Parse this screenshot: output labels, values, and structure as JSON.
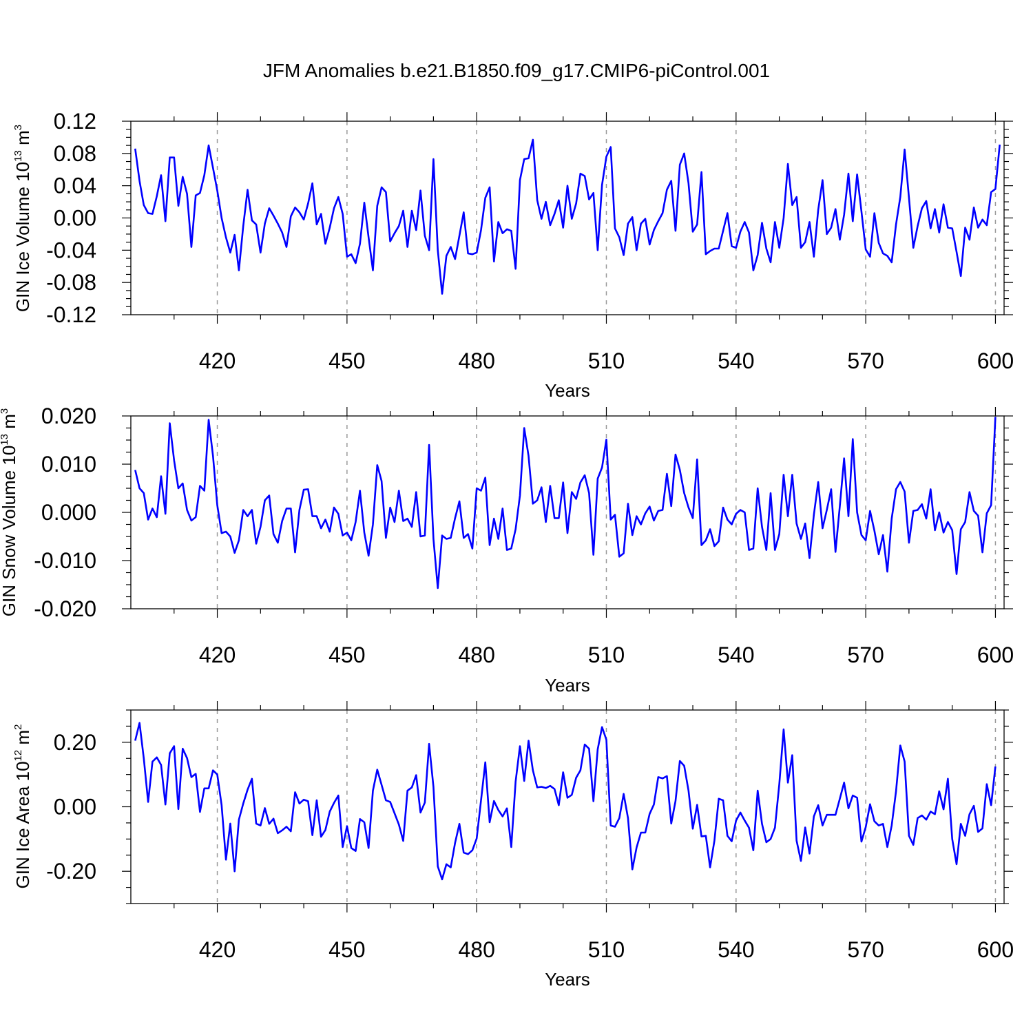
{
  "title": "JFM Anomalies b.e21.B1850.f09_g17.CMIP6-piControl.001",
  "chart_data": [
    {
      "type": "line",
      "ylabel": {
        "prefix": "GIN Ice Volume 10",
        "exp": "13",
        "unit": " m",
        "unit_exp": "3"
      },
      "xlabel": "Years",
      "xlim": [
        400,
        602
      ],
      "ylim": [
        -0.12,
        0.12
      ],
      "xticks": [
        420,
        450,
        480,
        510,
        540,
        570,
        600
      ],
      "xtick_labels": [
        "420",
        "450",
        "480",
        "510",
        "540",
        "570",
        "600"
      ],
      "yticks": [
        -0.12,
        -0.08,
        -0.04,
        0.0,
        0.04,
        0.08,
        0.12
      ],
      "ytick_labels": [
        "-0.12",
        "-0.08",
        "-0.04",
        "0.00",
        "0.04",
        "0.08",
        "0.12"
      ],
      "grid": "vertical dashed at major x ticks",
      "series": [
        {
          "color": "#0000ff",
          "x_start": 401,
          "values": [
            0.086,
            0.046,
            0.016,
            0.006,
            0.005,
            0.027,
            0.053,
            -0.004,
            0.075,
            0.075,
            0.015,
            0.051,
            0.03,
            -0.036,
            0.028,
            0.031,
            0.053,
            0.09,
            0.062,
            0.034,
            0.0,
            -0.024,
            -0.043,
            -0.021,
            -0.065,
            -0.01,
            0.035,
            -0.003,
            -0.008,
            -0.043,
            -0.007,
            0.012,
            0.003,
            -0.007,
            -0.018,
            -0.036,
            0.002,
            0.013,
            0.007,
            -0.002,
            0.018,
            0.043,
            -0.008,
            0.005,
            -0.032,
            -0.012,
            0.012,
            0.026,
            0.005,
            -0.048,
            -0.045,
            -0.056,
            -0.032,
            0.019,
            -0.024,
            -0.065,
            0.015,
            0.038,
            0.032,
            -0.029,
            -0.019,
            -0.01,
            0.009,
            -0.036,
            0.009,
            -0.015,
            0.034,
            -0.022,
            -0.04,
            0.073,
            -0.04,
            -0.094,
            -0.047,
            -0.036,
            -0.051,
            -0.022,
            0.007,
            -0.044,
            -0.045,
            -0.043,
            -0.015,
            0.025,
            0.038,
            -0.054,
            -0.005,
            -0.019,
            -0.014,
            -0.016,
            -0.063,
            0.047,
            0.073,
            0.074,
            0.097,
            0.022,
            -0.001,
            0.02,
            -0.009,
            0.005,
            0.022,
            -0.012,
            0.04,
            -0.001,
            0.018,
            0.055,
            0.052,
            0.023,
            0.031,
            -0.04,
            0.041,
            0.076,
            0.088,
            -0.013,
            -0.024,
            -0.046,
            -0.007,
            0.001,
            -0.04,
            -0.007,
            -0.001,
            -0.033,
            -0.015,
            -0.004,
            0.006,
            0.035,
            0.046,
            -0.016,
            0.066,
            0.08,
            0.043,
            -0.017,
            -0.008,
            0.057,
            -0.045,
            -0.041,
            -0.038,
            -0.038,
            -0.016,
            0.006,
            -0.035,
            -0.037,
            -0.017,
            -0.005,
            -0.018,
            -0.065,
            -0.046,
            -0.006,
            -0.038,
            -0.055,
            -0.005,
            -0.037,
            0.0,
            0.067,
            0.016,
            0.026,
            -0.037,
            -0.03,
            -0.005,
            -0.048,
            0.01,
            0.047,
            -0.02,
            -0.012,
            0.011,
            -0.027,
            0.004,
            0.055,
            -0.004,
            0.054,
            0.008,
            -0.039,
            -0.048,
            0.006,
            -0.031,
            -0.044,
            -0.047,
            -0.055,
            -0.008,
            0.026,
            0.085,
            0.025,
            -0.037,
            -0.01,
            0.012,
            0.021,
            -0.013,
            0.011,
            -0.018,
            0.017,
            -0.012,
            -0.013,
            -0.042,
            -0.072,
            -0.012,
            -0.027,
            0.013,
            -0.012,
            -0.002,
            -0.009,
            0.032,
            0.036,
            0.091
          ]
        }
      ]
    },
    {
      "type": "line",
      "ylabel": {
        "prefix": "GIN Snow Volume 10",
        "exp": "13",
        "unit": " m",
        "unit_exp": "3"
      },
      "xlabel": "Years",
      "xlim": [
        400,
        602
      ],
      "ylim": [
        -0.02,
        0.02
      ],
      "xticks": [
        420,
        450,
        480,
        510,
        540,
        570,
        600
      ],
      "xtick_labels": [
        "420",
        "450",
        "480",
        "510",
        "540",
        "570",
        "600"
      ],
      "yticks": [
        -0.02,
        -0.01,
        0.0,
        0.01,
        0.02
      ],
      "ytick_labels": [
        "-0.020",
        "-0.010",
        "0.000",
        "0.010",
        "0.020"
      ],
      "grid": "vertical dashed at major x ticks",
      "series": [
        {
          "color": "#0000ff",
          "x_start": 401,
          "values": [
            0.0088,
            0.005,
            0.004,
            -0.0015,
            0.0008,
            -0.001,
            0.0075,
            -0.0003,
            0.0185,
            0.0108,
            0.005,
            0.006,
            0.0005,
            -0.0017,
            -0.001,
            0.0055,
            0.0045,
            0.0192,
            0.0117,
            0.0015,
            -0.0043,
            -0.004,
            -0.005,
            -0.0084,
            -0.0058,
            0.0005,
            -0.0008,
            0.0005,
            -0.0065,
            -0.003,
            0.0025,
            0.0035,
            -0.0045,
            -0.0063,
            -0.0018,
            0.0008,
            0.0008,
            -0.0083,
            0.0005,
            0.0047,
            0.0048,
            -0.0008,
            -0.0008,
            -0.0033,
            -0.0015,
            -0.004,
            0.001,
            -0.0003,
            -0.0048,
            -0.0042,
            -0.0058,
            -0.002,
            0.0045,
            -0.0042,
            -0.009,
            -0.0025,
            0.0098,
            0.0065,
            -0.0053,
            0.001,
            -0.002,
            0.0045,
            -0.0018,
            -0.0013,
            -0.003,
            0.0042,
            -0.005,
            -0.0048,
            0.014,
            -0.0055,
            -0.0157,
            -0.0048,
            -0.0055,
            -0.0053,
            -0.0012,
            0.0023,
            -0.0053,
            -0.0045,
            -0.0075,
            0.005,
            0.0045,
            0.0072,
            -0.0068,
            -0.0013,
            -0.0055,
            0.0008,
            -0.0078,
            -0.0075,
            -0.0035,
            0.0035,
            0.0175,
            0.0117,
            0.0018,
            0.0025,
            0.0052,
            -0.002,
            0.0055,
            -0.0012,
            -0.0012,
            0.0062,
            -0.0043,
            0.0042,
            0.0028,
            0.0062,
            0.0077,
            0.004,
            -0.0088,
            0.007,
            0.0093,
            0.0151,
            -0.0015,
            -0.0005,
            -0.0092,
            -0.0085,
            0.0018,
            -0.0047,
            -0.0008,
            -0.0025,
            -0.0002,
            0.0012,
            -0.0017,
            0.0003,
            0.0005,
            0.008,
            0.0013,
            0.012,
            0.0088,
            0.004,
            0.001,
            -0.0012,
            0.011,
            -0.0068,
            -0.0058,
            -0.0035,
            -0.007,
            -0.006,
            0.001,
            -0.0015,
            -0.0025,
            -0.0003,
            0.0005,
            0.0,
            -0.0078,
            -0.0075,
            0.005,
            -0.003,
            -0.0078,
            0.004,
            -0.0078,
            -0.0045,
            0.0078,
            -0.0008,
            0.0078,
            -0.0023,
            -0.0055,
            -0.0023,
            -0.0095,
            -0.0005,
            0.0063,
            -0.0033,
            0.0005,
            0.0048,
            -0.0082,
            0.0013,
            0.0112,
            -0.0008,
            0.0152,
            0.0,
            -0.0047,
            -0.0058,
            0.0003,
            -0.0038,
            -0.0087,
            -0.0047,
            -0.0123,
            -0.0013,
            0.0048,
            0.0063,
            0.0043,
            -0.0063,
            0.0003,
            0.0005,
            0.0017,
            -0.0013,
            0.0048,
            -0.0037,
            0.0,
            -0.0042,
            -0.002,
            -0.0037,
            -0.0128,
            -0.0035,
            -0.002,
            0.0042,
            0.0003,
            -0.0007,
            -0.0083,
            -0.0002,
            0.0015,
            0.0198
          ]
        }
      ]
    },
    {
      "type": "line",
      "ylabel": {
        "prefix": "GIN Ice Area 10",
        "exp": "12",
        "unit": " m",
        "unit_exp": "2"
      },
      "xlabel": "Years",
      "xlim": [
        400,
        602
      ],
      "ylim": [
        -0.3,
        0.3
      ],
      "xticks": [
        420,
        450,
        480,
        510,
        540,
        570,
        600
      ],
      "xtick_labels": [
        "420",
        "450",
        "480",
        "510",
        "540",
        "570",
        "600"
      ],
      "yticks": [
        -0.2,
        0.0,
        0.2
      ],
      "ytick_labels": [
        "-0.20",
        "0.00",
        "0.20"
      ],
      "grid": "vertical dashed at major x ticks",
      "series": [
        {
          "color": "#0000ff",
          "x_start": 401,
          "values": [
            0.205,
            0.26,
            0.15,
            0.015,
            0.14,
            0.153,
            0.13,
            0.007,
            0.166,
            0.188,
            -0.007,
            0.18,
            0.151,
            0.092,
            0.102,
            -0.016,
            0.057,
            0.057,
            0.113,
            0.1,
            0.005,
            -0.164,
            -0.052,
            -0.2,
            -0.04,
            0.01,
            0.053,
            0.087,
            -0.052,
            -0.058,
            -0.004,
            -0.053,
            -0.037,
            -0.082,
            -0.073,
            -0.062,
            -0.076,
            0.045,
            0.01,
            0.022,
            0.017,
            -0.088,
            0.02,
            -0.093,
            -0.072,
            -0.015,
            0.012,
            0.035,
            -0.125,
            -0.06,
            -0.128,
            -0.137,
            -0.038,
            -0.048,
            -0.128,
            0.05,
            0.115,
            0.068,
            0.02,
            0.015,
            -0.02,
            -0.055,
            -0.106,
            0.05,
            0.06,
            0.098,
            -0.018,
            0.013,
            0.195,
            0.062,
            -0.185,
            -0.225,
            -0.178,
            -0.188,
            -0.112,
            -0.053,
            -0.142,
            -0.147,
            -0.135,
            -0.098,
            0.02,
            0.138,
            -0.048,
            0.018,
            -0.01,
            -0.03,
            -0.005,
            -0.125,
            0.078,
            0.188,
            0.08,
            0.205,
            0.113,
            0.06,
            0.062,
            0.058,
            0.065,
            0.055,
            0.005,
            0.107,
            0.028,
            0.037,
            0.09,
            0.113,
            0.193,
            0.18,
            0.017,
            0.178,
            0.247,
            0.208,
            -0.058,
            -0.062,
            -0.035,
            0.04,
            -0.035,
            -0.194,
            -0.126,
            -0.08,
            -0.08,
            -0.022,
            0.007,
            0.092,
            0.088,
            0.095,
            -0.052,
            0.018,
            0.142,
            0.127,
            0.05,
            -0.068,
            0.006,
            -0.092,
            -0.09,
            -0.188,
            -0.105,
            0.025,
            0.02,
            -0.09,
            -0.107,
            -0.043,
            -0.018,
            -0.043,
            -0.065,
            -0.135,
            0.05,
            -0.053,
            -0.11,
            -0.1,
            -0.065,
            0.07,
            0.24,
            0.075,
            0.16,
            -0.105,
            -0.168,
            -0.064,
            -0.145,
            -0.03,
            0.005,
            -0.058,
            -0.025,
            -0.025,
            -0.025,
            0.025,
            0.075,
            -0.005,
            0.035,
            0.028,
            -0.108,
            -0.063,
            0.008,
            -0.045,
            -0.058,
            -0.053,
            -0.125,
            -0.058,
            0.048,
            0.19,
            0.14,
            -0.09,
            -0.118,
            -0.035,
            -0.027,
            -0.04,
            -0.015,
            -0.023,
            0.048,
            -0.008,
            0.087,
            -0.1,
            -0.178,
            -0.053,
            -0.09,
            -0.023,
            0.003,
            -0.078,
            -0.067,
            0.07,
            0.005,
            0.125
          ]
        }
      ]
    }
  ]
}
